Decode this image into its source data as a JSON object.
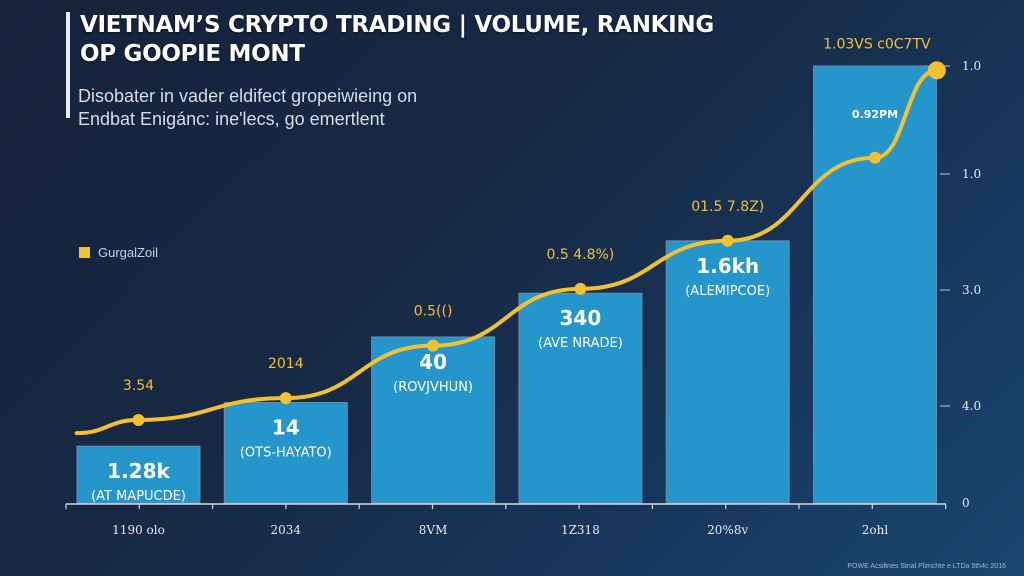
{
  "chart_data": {
    "type": "bar",
    "title": "VIETNAM’S CRYPTO TRADING | VOLUME, RANKING OP GOOPIE MONT",
    "title_lines": [
      "VIETNAM’S CRYPTO TRADING | VOLUME, RANKING",
      "OP GOOPIE MONT"
    ],
    "subtitle_lines": [
      "Disobater in vader eldifect gropeiwieing on",
      "Endbat Enigánc: ine'lecs, go emertlent"
    ],
    "legend": {
      "label": "GurgalZoil",
      "color": "#f2c12e",
      "placement": "left"
    },
    "categories": [
      "1190 olo",
      "2034",
      "8VM",
      "1Z318",
      "20%8v",
      "2ohl"
    ],
    "series": [
      {
        "name": "volume-bars",
        "kind": "bar",
        "color": "#2596cc",
        "relative_values": [
          0.13,
          0.23,
          0.38,
          0.48,
          0.6,
          1.0
        ],
        "value_labels": [
          "1.28k",
          "14",
          "40",
          "340",
          "1.6kh",
          "0.92PM"
        ],
        "sub_labels": [
          "(AT MAPUCDE)",
          "(OTS-HAYATO)",
          "(ROVJVHUN)",
          "(AVE NRADE)",
          "(ALEMIPCOE)",
          ""
        ]
      },
      {
        "name": "GurgalZoil",
        "kind": "line",
        "color": "#f2c12e",
        "relative_values": [
          0.16,
          0.19,
          0.24,
          0.36,
          0.49,
          0.6,
          0.79,
          0.99
        ],
        "point_positions": [
          -0.42,
          0.0,
          1.0,
          2.0,
          3.0,
          4.0,
          5.0,
          5.42
        ],
        "point_labels": [
          "",
          "3.54",
          "2014",
          "0.5(()",
          "0.5 4.8%)",
          "01.5 7.8Z)",
          "",
          "1.03VS c0C7TV"
        ]
      }
    ],
    "right_axis": {
      "tick_labels": [
        "1.0",
        "1.0",
        "3.0",
        "4.0",
        "0"
      ]
    },
    "ylim": [
      0,
      1
    ],
    "grid": false,
    "footnote": "POWE Acsiltnes Stnal Plimchte e LTDa 5th4c 2016"
  }
}
